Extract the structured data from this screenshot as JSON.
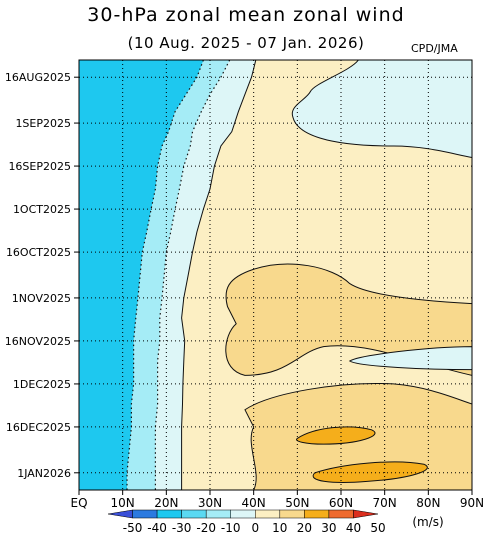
{
  "title": "30-hPa zonal mean zonal wind",
  "subtitle": "(10 Aug. 2025 - 07 Jan. 2026)",
  "credit": "CPD/JMA",
  "colors": {
    "c_m50": "#3a4fd8",
    "c_m40": "#2b7ae0",
    "c_m30": "#1ec8ef",
    "c_m20": "#5ad9f2",
    "c_m10": "#a5ecf6",
    "c_0": "#ddf6f7",
    "c_10": "#fcefc3",
    "c_20": "#f8d98d",
    "c_30": "#f5ae1b",
    "c_40": "#ee6a2e",
    "c_50": "#dc2e1e",
    "grid": "#000000",
    "contour": "#111111"
  },
  "chart_data": {
    "type": "heatmap",
    "title": "30-hPa zonal mean zonal wind",
    "subtitle": "(10 Aug. 2025 - 07 Jan. 2026)",
    "x_ticks": [
      "EQ",
      "10N",
      "20N",
      "30N",
      "40N",
      "50N",
      "60N",
      "70N",
      "80N",
      "90N"
    ],
    "x_range": [
      0,
      90
    ],
    "y_ticks": [
      "16AUG2025",
      "1SEP2025",
      "16SEP2025",
      "1OCT2025",
      "16OCT2025",
      "1NOV2025",
      "16NOV2025",
      "1DEC2025",
      "16DEC2025",
      "1JAN2026"
    ],
    "y_tick_days": [
      6,
      22,
      37,
      52,
      67,
      83,
      98,
      113,
      128,
      144
    ],
    "y_range_days": [
      0,
      150
    ],
    "grid": true,
    "colorbar": {
      "labels": [
        "-50",
        "-40",
        "-30",
        "-20",
        "-10",
        "0",
        "10",
        "20",
        "30",
        "40",
        "50"
      ],
      "unit": "(m/s)"
    },
    "zero_line_lat": [
      {
        "day": 0,
        "lat": 40.5
      },
      {
        "day": 3,
        "lat": 40
      },
      {
        "day": 6,
        "lat": 39.5
      },
      {
        "day": 12,
        "lat": 38
      },
      {
        "day": 18,
        "lat": 36.5
      },
      {
        "day": 25,
        "lat": 35
      },
      {
        "day": 30,
        "lat": 32.5
      },
      {
        "day": 37,
        "lat": 31
      },
      {
        "day": 45,
        "lat": 30
      },
      {
        "day": 52,
        "lat": 28.5
      },
      {
        "day": 60,
        "lat": 27
      },
      {
        "day": 67,
        "lat": 26
      },
      {
        "day": 75,
        "lat": 25
      },
      {
        "day": 83,
        "lat": 24
      },
      {
        "day": 90,
        "lat": 23.5
      },
      {
        "day": 98,
        "lat": 24.2
      },
      {
        "day": 105,
        "lat": 24
      },
      {
        "day": 113,
        "lat": 23.8
      },
      {
        "day": 120,
        "lat": 23.7
      },
      {
        "day": 128,
        "lat": 23.5
      },
      {
        "day": 136,
        "lat": 23.5
      },
      {
        "day": 144,
        "lat": 23.5
      },
      {
        "day": 150,
        "lat": 23.5
      }
    ],
    "minus10_line_lat": [
      {
        "day": 0,
        "lat": 34.5
      },
      {
        "day": 6,
        "lat": 32.5
      },
      {
        "day": 12,
        "lat": 30
      },
      {
        "day": 18,
        "lat": 28
      },
      {
        "day": 25,
        "lat": 26
      },
      {
        "day": 30,
        "lat": 25.5
      },
      {
        "day": 37,
        "lat": 24
      },
      {
        "day": 45,
        "lat": 23
      },
      {
        "day": 52,
        "lat": 22
      },
      {
        "day": 60,
        "lat": 21
      },
      {
        "day": 67,
        "lat": 20
      },
      {
        "day": 75,
        "lat": 19.5
      },
      {
        "day": 83,
        "lat": 19
      },
      {
        "day": 90,
        "lat": 18.5
      },
      {
        "day": 98,
        "lat": 18.5
      },
      {
        "day": 105,
        "lat": 18
      },
      {
        "day": 113,
        "lat": 18
      },
      {
        "day": 120,
        "lat": 18
      },
      {
        "day": 128,
        "lat": 17.5
      },
      {
        "day": 136,
        "lat": 17.5
      },
      {
        "day": 144,
        "lat": 17.5
      },
      {
        "day": 150,
        "lat": 17.5
      }
    ],
    "minus20_line_lat": [
      {
        "day": 0,
        "lat": 28.5
      },
      {
        "day": 6,
        "lat": 27
      },
      {
        "day": 12,
        "lat": 24.5
      },
      {
        "day": 18,
        "lat": 22
      },
      {
        "day": 25,
        "lat": 20.5
      },
      {
        "day": 30,
        "lat": 19
      },
      {
        "day": 37,
        "lat": 18
      },
      {
        "day": 45,
        "lat": 17.5
      },
      {
        "day": 52,
        "lat": 16.5
      },
      {
        "day": 60,
        "lat": 15.5
      },
      {
        "day": 67,
        "lat": 14.5
      },
      {
        "day": 75,
        "lat": 14
      },
      {
        "day": 83,
        "lat": 13.5
      },
      {
        "day": 90,
        "lat": 13
      },
      {
        "day": 98,
        "lat": 12.5
      },
      {
        "day": 105,
        "lat": 12.5
      },
      {
        "day": 113,
        "lat": 12.5
      },
      {
        "day": 120,
        "lat": 12
      },
      {
        "day": 128,
        "lat": 12
      },
      {
        "day": 136,
        "lat": 11.5
      },
      {
        "day": 144,
        "lat": 11
      },
      {
        "day": 150,
        "lat": 11
      }
    ]
  }
}
